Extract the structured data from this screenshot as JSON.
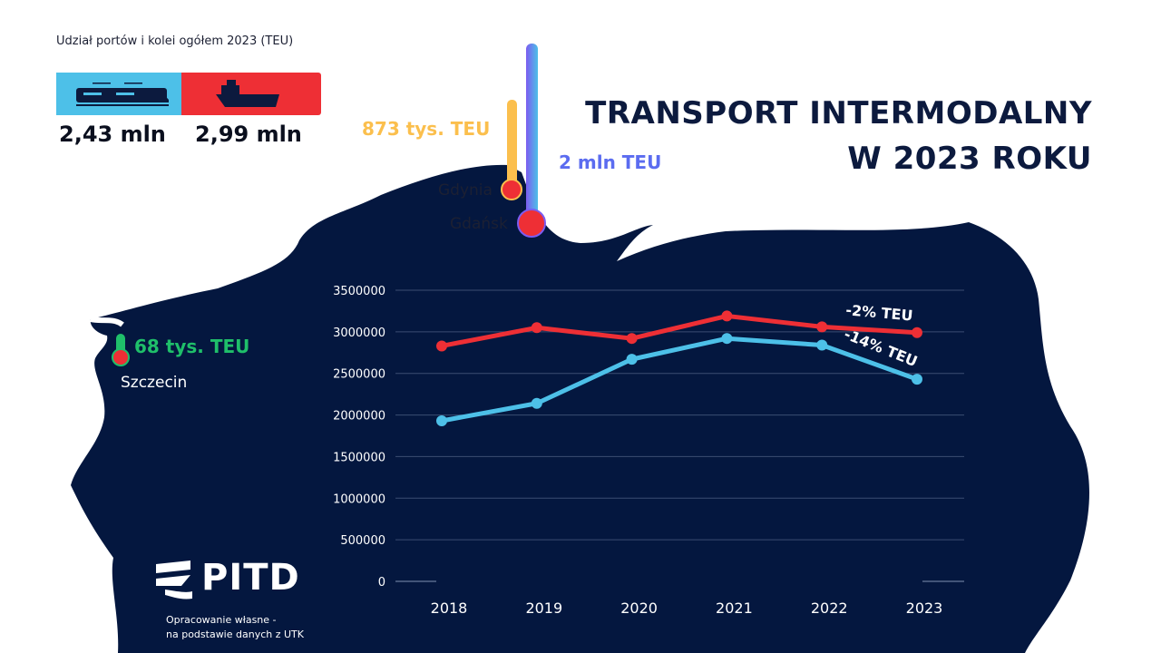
{
  "share": {
    "title": "Udział portów i kolei ogółem 2023 (TEU)",
    "rail_value": "2,43 mln",
    "sea_value": "2,99 mln",
    "rail_icon": "train-icon",
    "sea_icon": "ship-icon",
    "rail_color": "#4dc0e8",
    "sea_color": "#ee2f35"
  },
  "title": {
    "line1": "TRANSPORT INTERMODALNY",
    "line2": "W 2023 ROKU"
  },
  "ports": {
    "gdynia": {
      "name": "Gdynia",
      "value": "873 tys. TEU"
    },
    "gdansk": {
      "name": "Gdańsk",
      "value": "2 mln TEU"
    },
    "szczecin": {
      "name": "Szczecin",
      "value": "68 tys. TEU"
    }
  },
  "footer": {
    "logo": "PITD",
    "source_line1": "Opracowanie własne -",
    "source_line2": "na podstawie danych z UTK"
  },
  "chart_data": {
    "type": "line",
    "categories": [
      "2018",
      "2019",
      "2020",
      "2021",
      "2022",
      "2023"
    ],
    "ylim": [
      0,
      3500000
    ],
    "yticks": [
      "0",
      "500000",
      "1000000",
      "1500000",
      "2000000",
      "2500000",
      "3000000",
      "3500000"
    ],
    "grid": true,
    "series": [
      {
        "color": "#ee2f35",
        "values": [
          2830000,
          3050000,
          2920000,
          3190000,
          3060000,
          2990000
        ],
        "annotation": "-2% TEU"
      },
      {
        "color": "#4dc0e8",
        "values": [
          1930000,
          2140000,
          2670000,
          2920000,
          2840000,
          2430000
        ],
        "annotation": "-14% TEU"
      }
    ]
  }
}
